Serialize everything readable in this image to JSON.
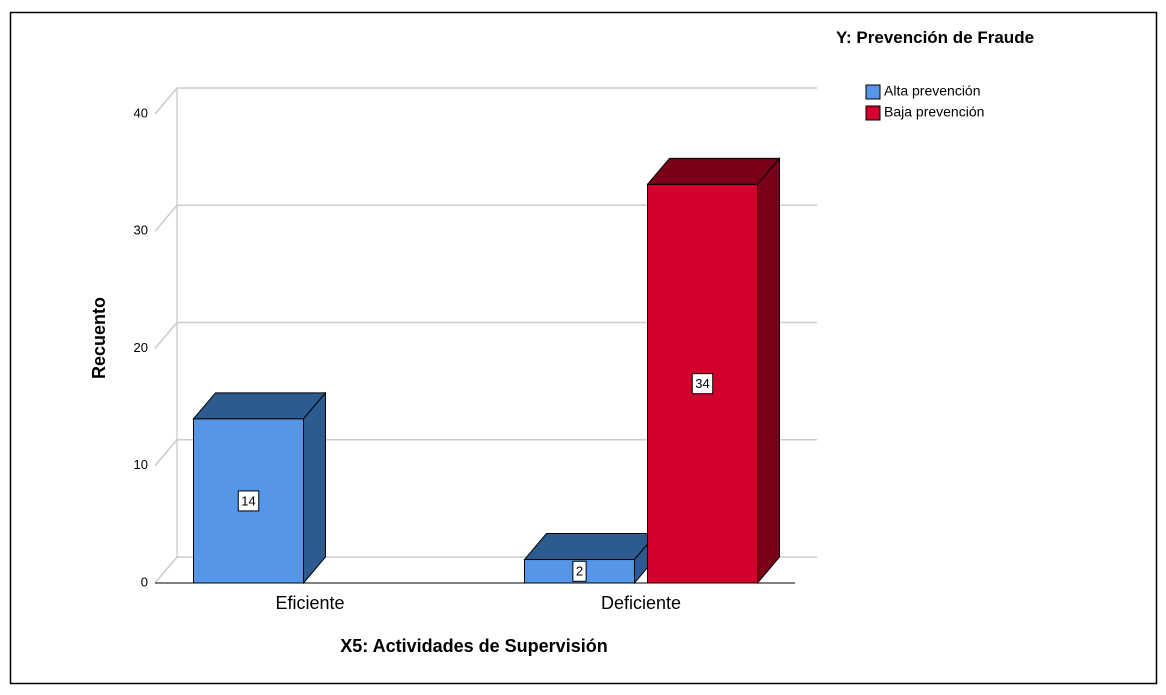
{
  "chart_data": {
    "type": "bar3d",
    "x_label": "X5: Actividades de Supervisión",
    "y_label": "Recuento",
    "legend_title": "Y: Prevención de Fraude",
    "categories": [
      "Eficiente",
      "Deficiente"
    ],
    "series": [
      {
        "name": "Alta prevención",
        "color": "#5596e6",
        "side_color": "#2d5a8f",
        "values": [
          14,
          2
        ]
      },
      {
        "name": "Baja prevención",
        "color": "#d2002c",
        "side_color": "#7a0019",
        "values": [
          null,
          34
        ]
      }
    ],
    "ylim": [
      0,
      40
    ],
    "yticks": [
      0,
      10,
      20,
      30,
      40
    ],
    "grid": true,
    "legend": "right"
  }
}
